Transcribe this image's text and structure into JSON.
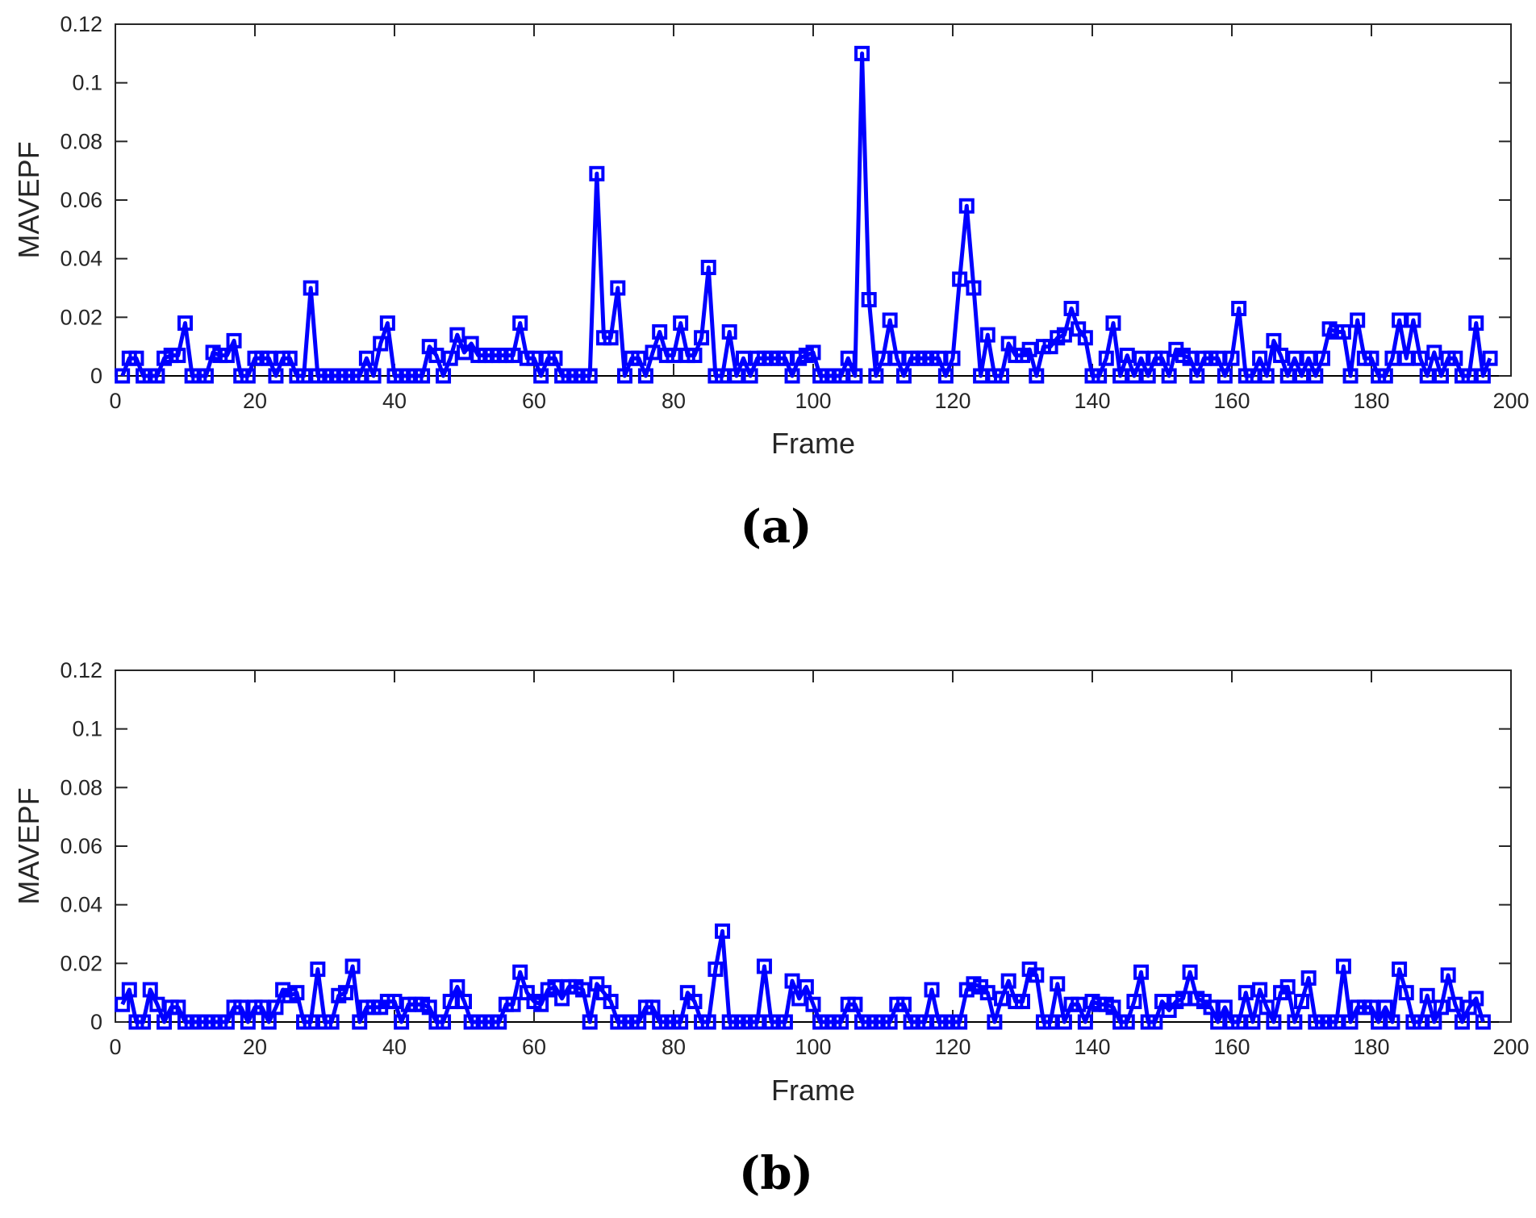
{
  "chart_data": [
    {
      "type": "line",
      "panel_label": "(a)",
      "xlabel": "Frame",
      "ylabel": "MAVEPF",
      "xlim": [
        0,
        200
      ],
      "ylim": [
        0,
        0.12
      ],
      "xticks": [
        0,
        20,
        40,
        60,
        80,
        100,
        120,
        140,
        160,
        180,
        200
      ],
      "yticks": [
        0,
        0.02,
        0.04,
        0.06,
        0.08,
        0.1,
        0.12
      ],
      "xtick_labels": [
        "0",
        "20",
        "40",
        "60",
        "80",
        "100",
        "120",
        "140",
        "160",
        "180",
        "200"
      ],
      "ytick_labels": [
        "0",
        "0.02",
        "0.04",
        "0.06",
        "0.08",
        "0.1",
        "0.12"
      ],
      "grid": false,
      "marker": "square",
      "color": "#0000ff",
      "series": [
        {
          "x_start": 1,
          "values": [
            0,
            0.006,
            0.006,
            0,
            0,
            0,
            0.006,
            0.007,
            0.007,
            0.018,
            0,
            0,
            0,
            0.008,
            0.007,
            0.007,
            0.012,
            0,
            0,
            0.006,
            0.006,
            0.006,
            0,
            0.006,
            0.006,
            0,
            0,
            0.03,
            0,
            0,
            0,
            0,
            0,
            0,
            0,
            0.006,
            0,
            0.011,
            0.018,
            0,
            0,
            0,
            0,
            0,
            0.01,
            0.007,
            0,
            0.006,
            0.014,
            0.008,
            0.011,
            0.007,
            0.007,
            0.007,
            0.007,
            0.007,
            0.007,
            0.018,
            0.006,
            0.006,
            0,
            0.006,
            0.006,
            0,
            0,
            0,
            0,
            0,
            0.069,
            0.013,
            0.013,
            0.03,
            0,
            0.006,
            0.006,
            0,
            0.008,
            0.015,
            0.007,
            0.007,
            0.018,
            0.007,
            0.007,
            0.013,
            0.037,
            0,
            0,
            0.015,
            0,
            0.006,
            0,
            0.006,
            0.006,
            0.006,
            0.006,
            0.006,
            0,
            0.006,
            0.007,
            0.008,
            0,
            0,
            0,
            0,
            0.006,
            0,
            0.11,
            0.026,
            0,
            0.006,
            0.019,
            0.006,
            0,
            0.006,
            0.006,
            0.006,
            0.006,
            0.006,
            0,
            0.006,
            0.033,
            0.058,
            0.03,
            0,
            0.014,
            0,
            0,
            0.011,
            0.007,
            0.007,
            0.009,
            0,
            0.01,
            0.01,
            0.013,
            0.014,
            0.023,
            0.016,
            0.013,
            0,
            0,
            0.006,
            0.018,
            0,
            0.007,
            0,
            0.006,
            0,
            0.006,
            0.006,
            0,
            0.009,
            0.007,
            0.006,
            0,
            0.006,
            0.006,
            0.006,
            0,
            0.006,
            0.023,
            0,
            0,
            0.006,
            0,
            0.012,
            0.007,
            0,
            0.006,
            0,
            0.006,
            0,
            0.006,
            0.016,
            0.015,
            0.015,
            0,
            0.019,
            0.006,
            0.006,
            0,
            0,
            0.006,
            0.019,
            0.006,
            0.019,
            0.006,
            0,
            0.008,
            0,
            0.006,
            0.006,
            0,
            0,
            0.018,
            0,
            0.006
          ]
        }
      ]
    },
    {
      "type": "line",
      "panel_label": "(b)",
      "xlabel": "Frame",
      "ylabel": "MAVEPF",
      "xlim": [
        0,
        200
      ],
      "ylim": [
        0,
        0.12
      ],
      "xticks": [
        0,
        20,
        40,
        60,
        80,
        100,
        120,
        140,
        160,
        180,
        200
      ],
      "yticks": [
        0,
        0.02,
        0.04,
        0.06,
        0.08,
        0.1,
        0.12
      ],
      "xtick_labels": [
        "0",
        "20",
        "40",
        "60",
        "80",
        "100",
        "120",
        "140",
        "160",
        "180",
        "200"
      ],
      "ytick_labels": [
        "0",
        "0.02",
        "0.04",
        "0.06",
        "0.08",
        "0.1",
        "0.12"
      ],
      "grid": false,
      "marker": "square",
      "color": "#0000ff",
      "series": [
        {
          "x_start": 1,
          "values": [
            0.006,
            0.011,
            0,
            0,
            0.011,
            0.006,
            0,
            0.005,
            0.005,
            0,
            0,
            0,
            0,
            0,
            0,
            0,
            0.005,
            0.005,
            0,
            0.005,
            0.005,
            0,
            0.005,
            0.011,
            0.009,
            0.01,
            0,
            0,
            0.018,
            0,
            0,
            0.009,
            0.01,
            0.019,
            0,
            0.005,
            0.005,
            0.005,
            0.007,
            0.007,
            0,
            0.006,
            0.006,
            0.006,
            0.005,
            0,
            0,
            0.007,
            0.012,
            0.007,
            0,
            0,
            0,
            0,
            0,
            0.006,
            0.006,
            0.017,
            0.01,
            0.007,
            0.006,
            0.011,
            0.012,
            0.008,
            0.012,
            0.012,
            0.011,
            0,
            0.013,
            0.01,
            0.007,
            0,
            0,
            0,
            0,
            0.005,
            0.005,
            0,
            0,
            0,
            0,
            0.01,
            0.007,
            0,
            0,
            0.018,
            0.031,
            0,
            0,
            0,
            0,
            0,
            0.019,
            0,
            0,
            0,
            0.014,
            0.008,
            0.012,
            0.006,
            0,
            0,
            0,
            0,
            0.006,
            0.006,
            0,
            0,
            0,
            0,
            0,
            0.006,
            0.006,
            0,
            0,
            0,
            0.011,
            0,
            0,
            0,
            0,
            0.011,
            0.013,
            0.012,
            0.01,
            0,
            0.008,
            0.014,
            0.007,
            0.007,
            0.018,
            0.016,
            0,
            0,
            0.013,
            0,
            0.006,
            0.006,
            0,
            0.007,
            0.006,
            0.006,
            0.005,
            0,
            0,
            0.007,
            0.017,
            0,
            0,
            0.007,
            0.004,
            0.007,
            0.008,
            0.017,
            0.008,
            0.007,
            0.005,
            0,
            0.005,
            0,
            0,
            0.01,
            0,
            0.011,
            0.005,
            0,
            0.01,
            0.012,
            0,
            0.007,
            0.015,
            0,
            0,
            0,
            0,
            0.019,
            0,
            0.005,
            0.005,
            0.005,
            0,
            0.005,
            0,
            0.018,
            0.01,
            0,
            0,
            0.009,
            0,
            0.005,
            0.016,
            0.006,
            0,
            0.005,
            0.008,
            0
          ]
        }
      ]
    }
  ]
}
